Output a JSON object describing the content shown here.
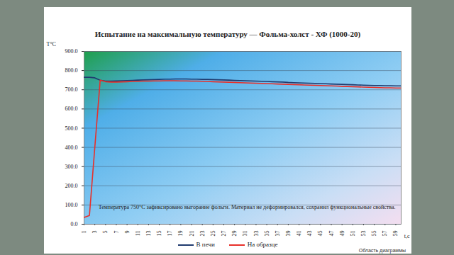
{
  "chart_data": {
    "type": "line",
    "title": "Испытание на максимальную температуру — Фольма-холст - ХФ (1000-20)",
    "x_label": "t,с",
    "y_label": "T°C",
    "x": [
      1,
      2,
      3,
      4,
      5,
      6,
      7,
      8,
      9,
      10,
      11,
      12,
      13,
      14,
      15,
      16,
      17,
      18,
      19,
      20,
      21,
      22,
      23,
      24,
      25,
      26,
      27,
      28,
      29,
      30,
      31,
      32,
      33,
      34,
      35,
      36,
      37,
      38,
      39,
      40,
      41,
      42,
      43,
      44,
      45,
      46,
      47,
      48,
      49,
      50,
      51,
      52,
      53,
      54,
      55,
      56,
      57,
      58,
      59,
      60
    ],
    "series": [
      {
        "name": "В печи",
        "color": "#1f3a6e",
        "values": [
          765,
          765,
          762,
          750,
          745,
          745,
          746,
          747,
          748,
          749,
          750,
          751,
          752,
          753,
          754,
          755,
          755,
          756,
          756,
          756,
          755,
          755,
          754,
          754,
          753,
          752,
          751,
          750,
          749,
          748,
          747,
          746,
          745,
          744,
          743,
          742,
          741,
          740,
          738,
          737,
          736,
          735,
          734,
          733,
          732,
          731,
          730,
          729,
          728,
          727,
          726,
          725,
          724,
          723,
          722,
          722,
          721,
          721,
          720,
          720
        ]
      },
      {
        "name": "На образце",
        "color": "#e8302a",
        "values": [
          35,
          45,
          400,
          750,
          742,
          740,
          740,
          741,
          742,
          743,
          744,
          745,
          745,
          746,
          746,
          747,
          747,
          747,
          746,
          746,
          745,
          745,
          744,
          743,
          742,
          741,
          740,
          739,
          738,
          737,
          736,
          735,
          734,
          733,
          732,
          731,
          730,
          729,
          728,
          727,
          726,
          725,
          724,
          723,
          722,
          721,
          720,
          719,
          718,
          717,
          716,
          715,
          714,
          713,
          712,
          711,
          710,
          710,
          709,
          709
        ]
      }
    ],
    "xlim": [
      1,
      60
    ],
    "ylim": [
      0,
      900
    ],
    "xticks": [
      1,
      3,
      5,
      7,
      9,
      11,
      13,
      15,
      17,
      19,
      21,
      23,
      25,
      27,
      29,
      31,
      33,
      35,
      37,
      39,
      41,
      43,
      45,
      47,
      49,
      51,
      53,
      55,
      57,
      59
    ],
    "yticks": [
      {
        "value": 0,
        "label": "0.0"
      },
      {
        "value": 100,
        "label": "100.0"
      },
      {
        "value": 200,
        "label": "200.0"
      },
      {
        "value": 300,
        "label": "300.0"
      },
      {
        "value": 400,
        "label": "400.0"
      },
      {
        "value": 500,
        "label": "500.0"
      },
      {
        "value": 600,
        "label": "600.0"
      },
      {
        "value": 700,
        "label": "700.0"
      },
      {
        "value": 800,
        "label": "800.0"
      },
      {
        "value": 900,
        "label": "900.0"
      }
    ],
    "grid": true,
    "legend": "bottom",
    "annotations": [
      "Температура 750°С зафиксировано выгорание фольги. Материал не деформировался, сохранил функциональные свойства.",
      "Область диаграммы"
    ]
  }
}
